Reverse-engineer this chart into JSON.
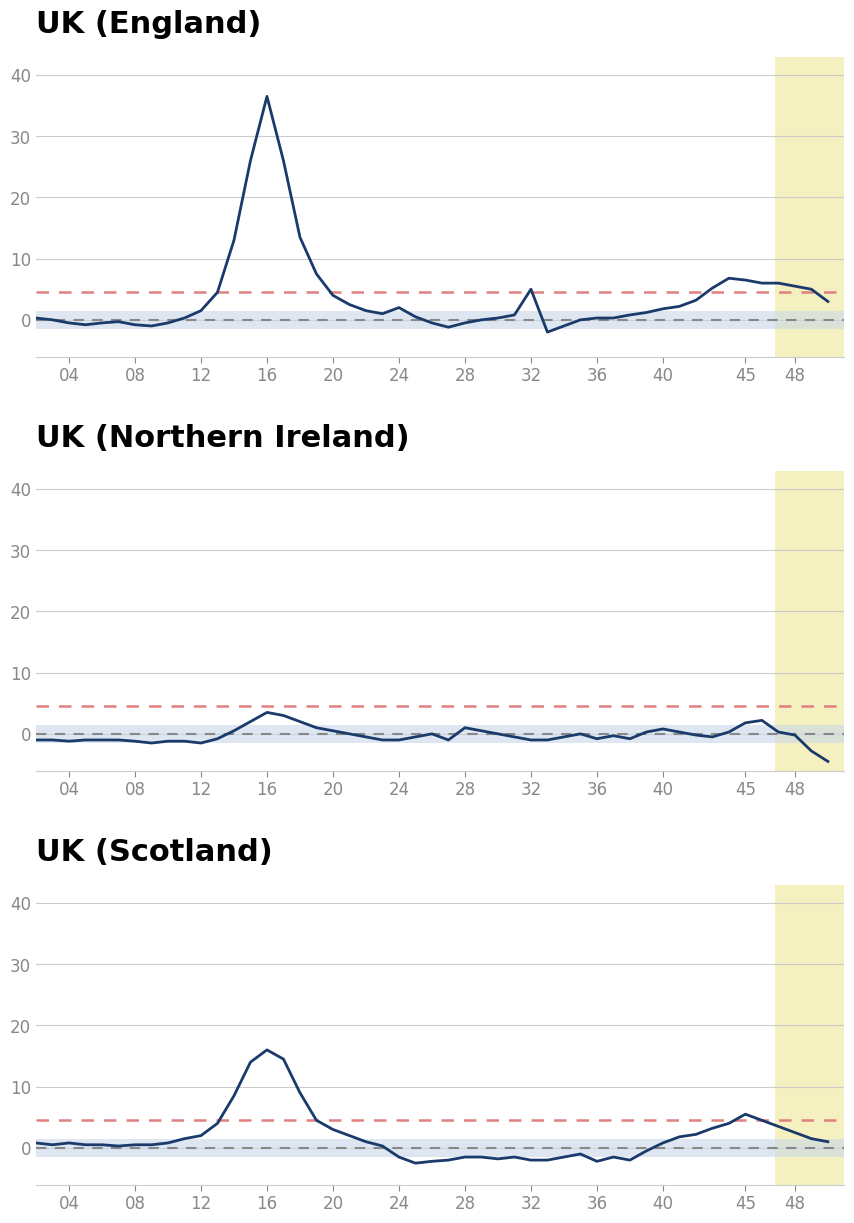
{
  "titles": [
    "UK (England)",
    "UK (Northern Ireland)",
    "UK (Scotland)"
  ],
  "x_ticks": [
    4,
    8,
    12,
    16,
    20,
    24,
    28,
    32,
    36,
    40,
    45,
    48
  ],
  "x_tick_labels": [
    "04",
    "08",
    "12",
    "16",
    "20",
    "24",
    "28",
    "32",
    "36",
    "40",
    "45",
    "48"
  ],
  "ylim": [
    -6,
    43
  ],
  "yticks": [
    0,
    10,
    20,
    30,
    40
  ],
  "red_dashed_y": 4.5,
  "grey_dashed_y": 0,
  "shade_band": [
    -1.5,
    1.5
  ],
  "highlight_x_start": 46.8,
  "highlight_x_end": 51,
  "highlight_color": "#f5f0c0",
  "line_color": "#1a3a6b",
  "red_dashed_color": "#e08080",
  "grey_dashed_color": "#888888",
  "shade_color": "#c8d8e8",
  "background_color": "#ffffff",
  "title_fontsize": 22,
  "tick_fontsize": 12,
  "xlim_left": 2,
  "xlim_right": 51,
  "england_x": [
    2,
    3,
    4,
    5,
    6,
    7,
    8,
    9,
    10,
    11,
    12,
    13,
    14,
    15,
    16,
    17,
    18,
    19,
    20,
    21,
    22,
    23,
    24,
    25,
    26,
    27,
    28,
    29,
    30,
    31,
    32,
    33,
    34,
    35,
    36,
    37,
    38,
    39,
    40,
    41,
    42,
    43,
    44,
    45,
    46,
    47,
    48,
    49,
    50
  ],
  "england_y": [
    0.3,
    0.0,
    -0.5,
    -0.8,
    -0.5,
    -0.3,
    -0.8,
    -1.0,
    -0.5,
    0.3,
    1.5,
    4.5,
    13.0,
    26.0,
    36.5,
    26.0,
    13.5,
    7.5,
    4.0,
    2.5,
    1.5,
    1.0,
    2.0,
    0.5,
    -0.5,
    -1.2,
    -0.5,
    0.0,
    0.3,
    0.8,
    5.0,
    -2.0,
    -1.0,
    0.0,
    0.3,
    0.3,
    0.8,
    1.2,
    1.8,
    2.2,
    3.2,
    5.2,
    6.8,
    6.5,
    6.0,
    6.0,
    5.5,
    5.0,
    3.0
  ],
  "nireland_x": [
    2,
    3,
    4,
    5,
    6,
    7,
    8,
    9,
    10,
    11,
    12,
    13,
    14,
    15,
    16,
    17,
    18,
    19,
    20,
    21,
    22,
    23,
    24,
    25,
    26,
    27,
    28,
    29,
    30,
    31,
    32,
    33,
    34,
    35,
    36,
    37,
    38,
    39,
    40,
    41,
    42,
    43,
    44,
    45,
    46,
    47,
    48,
    49,
    50
  ],
  "nireland_y": [
    -1.0,
    -1.0,
    -1.2,
    -1.0,
    -1.0,
    -1.0,
    -1.2,
    -1.5,
    -1.2,
    -1.2,
    -1.5,
    -0.8,
    0.5,
    2.0,
    3.5,
    3.0,
    2.0,
    1.0,
    0.5,
    0.0,
    -0.5,
    -1.0,
    -1.0,
    -0.5,
    0.0,
    -1.0,
    1.0,
    0.5,
    0.0,
    -0.5,
    -1.0,
    -1.0,
    -0.5,
    0.0,
    -0.8,
    -0.3,
    -0.8,
    0.3,
    0.8,
    0.3,
    -0.2,
    -0.5,
    0.3,
    1.8,
    2.2,
    0.3,
    -0.2,
    -2.8,
    -4.5
  ],
  "scotland_x": [
    2,
    3,
    4,
    5,
    6,
    7,
    8,
    9,
    10,
    11,
    12,
    13,
    14,
    15,
    16,
    17,
    18,
    19,
    20,
    21,
    22,
    23,
    24,
    25,
    26,
    27,
    28,
    29,
    30,
    31,
    32,
    33,
    34,
    35,
    36,
    37,
    38,
    39,
    40,
    41,
    42,
    43,
    44,
    45,
    46,
    47,
    48,
    49,
    50
  ],
  "scotland_y": [
    0.8,
    0.5,
    0.8,
    0.5,
    0.5,
    0.3,
    0.5,
    0.5,
    0.8,
    1.5,
    2.0,
    4.0,
    8.5,
    14.0,
    16.0,
    14.5,
    9.0,
    4.5,
    3.0,
    2.0,
    1.0,
    0.3,
    -1.5,
    -2.5,
    -2.2,
    -2.0,
    -1.5,
    -1.5,
    -1.8,
    -1.5,
    -2.0,
    -2.0,
    -1.5,
    -1.0,
    -2.2,
    -1.5,
    -2.0,
    -0.5,
    0.8,
    1.8,
    2.2,
    3.2,
    4.0,
    5.5,
    4.5,
    3.5,
    2.5,
    1.5,
    1.0
  ]
}
